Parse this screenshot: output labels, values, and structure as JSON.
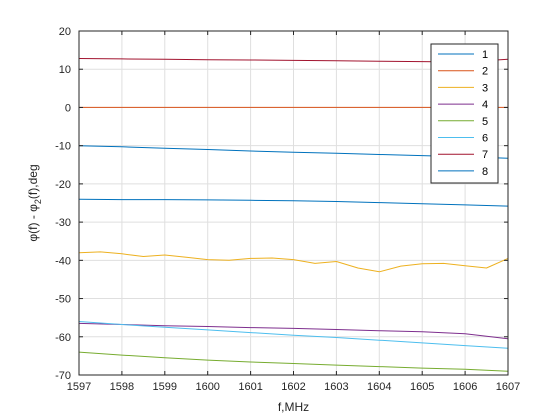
{
  "chart_data": {
    "type": "line",
    "xlabel": "f,MHz",
    "ylabel_main": "φ(f) - φ",
    "ylabel_sub": "2",
    "ylabel_tail": "(f),deg",
    "xlim": [
      1597,
      1607
    ],
    "ylim": [
      -70,
      20
    ],
    "xticks": [
      1597,
      1598,
      1599,
      1600,
      1601,
      1602,
      1603,
      1604,
      1605,
      1606,
      1607
    ],
    "yticks": [
      20,
      10,
      0,
      -10,
      -20,
      -30,
      -40,
      -50,
      -60,
      -70
    ],
    "grid": true,
    "legend_position": "top-right",
    "series": [
      {
        "name": "1",
        "color": "#0072BD",
        "x": [
          1597,
          1598,
          1599,
          1600,
          1601,
          1602,
          1603,
          1604,
          1605,
          1606,
          1607
        ],
        "y": [
          -10,
          -10.3,
          -10.7,
          -11.0,
          -11.4,
          -11.7,
          -12.0,
          -12.3,
          -12.6,
          -12.9,
          -13.3
        ]
      },
      {
        "name": "2",
        "color": "#D95319",
        "x": [
          1597,
          1607
        ],
        "y": [
          0,
          0
        ]
      },
      {
        "name": "3",
        "color": "#EDB120",
        "x": [
          1597,
          1597.5,
          1598,
          1598.5,
          1599,
          1599.5,
          1600,
          1600.5,
          1601,
          1601.5,
          1602,
          1602.5,
          1603,
          1603.5,
          1604,
          1604.5,
          1605,
          1605.5,
          1606,
          1606.5,
          1607
        ],
        "y": [
          -38,
          -37.8,
          -38.3,
          -39.0,
          -38.6,
          -39.2,
          -39.8,
          -40.0,
          -39.5,
          -39.4,
          -39.8,
          -40.8,
          -40.3,
          -42.0,
          -43.0,
          -41.5,
          -40.9,
          -40.8,
          -41.4,
          -42.0,
          -39.5
        ]
      },
      {
        "name": "4",
        "color": "#7E2F8E",
        "x": [
          1597,
          1598,
          1599,
          1600,
          1601,
          1602,
          1603,
          1604,
          1605,
          1606,
          1607
        ],
        "y": [
          -56.5,
          -56.8,
          -57.1,
          -57.3,
          -57.6,
          -57.8,
          -58.1,
          -58.4,
          -58.7,
          -59.2,
          -60.5
        ]
      },
      {
        "name": "5",
        "color": "#77AC30",
        "x": [
          1597,
          1598,
          1599,
          1600,
          1601,
          1602,
          1603,
          1604,
          1605,
          1606,
          1607
        ],
        "y": [
          -64,
          -64.8,
          -65.5,
          -66.1,
          -66.6,
          -67.0,
          -67.4,
          -67.8,
          -68.2,
          -68.5,
          -69
        ]
      },
      {
        "name": "6",
        "color": "#4DBEEE",
        "x": [
          1597,
          1598,
          1599,
          1600,
          1601,
          1602,
          1603,
          1604,
          1605,
          1606,
          1607
        ],
        "y": [
          -56,
          -56.8,
          -57.5,
          -58.2,
          -58.9,
          -59.6,
          -60.2,
          -60.9,
          -61.6,
          -62.3,
          -63
        ]
      },
      {
        "name": "7",
        "color": "#A2142F",
        "x": [
          1597,
          1598,
          1599,
          1600,
          1601,
          1602,
          1603,
          1604,
          1605,
          1606,
          1607
        ],
        "y": [
          12.8,
          12.7,
          12.6,
          12.5,
          12.4,
          12.3,
          12.2,
          12.1,
          12.0,
          11.9,
          12.6
        ]
      },
      {
        "name": "8",
        "color": "#0072BD",
        "x": [
          1597,
          1598,
          1599,
          1600,
          1601,
          1602,
          1603,
          1604,
          1605,
          1606,
          1607
        ],
        "y": [
          -24,
          -24.1,
          -24.1,
          -24.2,
          -24.3,
          -24.4,
          -24.6,
          -24.9,
          -25.2,
          -25.5,
          -25.8
        ]
      }
    ]
  }
}
